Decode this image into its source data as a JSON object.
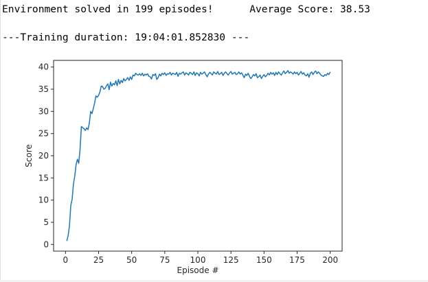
{
  "output": {
    "solved_line": "Environment solved in 199 episodes!      Average Score: 38.53",
    "duration_line": "---Training duration: 19:04:01.852830 ---"
  },
  "colors": {
    "line": "#1f77b4",
    "axis": "#262626",
    "text": "#000000"
  },
  "chart_data": {
    "type": "line",
    "title": "",
    "xlabel": "Episode #",
    "ylabel": "Score",
    "xlim": [
      -9,
      209
    ],
    "ylim": [
      -1.5,
      41.5
    ],
    "xticks": [
      0,
      25,
      50,
      75,
      100,
      125,
      150,
      175,
      200
    ],
    "yticks": [
      0,
      5,
      10,
      15,
      20,
      25,
      30,
      35,
      40
    ],
    "grid": false,
    "legend": "none",
    "series": [
      {
        "name": "",
        "x": [
          1,
          2,
          3,
          4,
          5,
          6,
          7,
          8,
          9,
          10,
          11,
          12,
          13,
          14,
          15,
          16,
          17,
          18,
          19,
          20,
          21,
          22,
          23,
          24,
          25,
          26,
          27,
          28,
          29,
          30,
          31,
          32,
          33,
          34,
          35,
          36,
          37,
          38,
          39,
          40,
          41,
          42,
          43,
          44,
          45,
          46,
          47,
          48,
          49,
          50,
          51,
          52,
          53,
          54,
          55,
          56,
          57,
          58,
          59,
          60,
          61,
          62,
          63,
          64,
          65,
          66,
          67,
          68,
          69,
          70,
          71,
          72,
          73,
          74,
          75,
          76,
          77,
          78,
          79,
          80,
          81,
          82,
          83,
          84,
          85,
          86,
          87,
          88,
          89,
          90,
          91,
          92,
          93,
          94,
          95,
          96,
          97,
          98,
          99,
          100,
          101,
          102,
          103,
          104,
          105,
          106,
          107,
          108,
          109,
          110,
          111,
          112,
          113,
          114,
          115,
          116,
          117,
          118,
          119,
          120,
          121,
          122,
          123,
          124,
          125,
          126,
          127,
          128,
          129,
          130,
          131,
          132,
          133,
          134,
          135,
          136,
          137,
          138,
          139,
          140,
          141,
          142,
          143,
          144,
          145,
          146,
          147,
          148,
          149,
          150,
          151,
          152,
          153,
          154,
          155,
          156,
          157,
          158,
          159,
          160,
          161,
          162,
          163,
          164,
          165,
          166,
          167,
          168,
          169,
          170,
          171,
          172,
          173,
          174,
          175,
          176,
          177,
          178,
          179,
          180,
          181,
          182,
          183,
          184,
          185,
          186,
          187,
          188,
          189,
          190,
          191,
          192,
          193,
          194,
          195,
          196,
          197,
          198,
          199,
          200
        ],
        "values": [
          0.8,
          2.0,
          4.2,
          8.8,
          10.2,
          13.6,
          15.4,
          18.0,
          19.2,
          18.3,
          21.5,
          26.6,
          26.3,
          26.1,
          25.7,
          26.3,
          25.9,
          27.3,
          30.0,
          29.5,
          30.6,
          31.9,
          33.5,
          33.2,
          33.6,
          34.4,
          35.7,
          35.6,
          35.0,
          35.2,
          35.8,
          36.2,
          34.9,
          36.6,
          35.7,
          36.3,
          36.0,
          36.9,
          35.8,
          37.2,
          36.2,
          37.0,
          36.5,
          37.4,
          36.9,
          37.2,
          37.6,
          37.0,
          37.8,
          37.2,
          38.2,
          38.0,
          38.6,
          38.3,
          38.2,
          38.5,
          38.1,
          38.6,
          38.0,
          38.4,
          38.2,
          38.5,
          37.9,
          37.8,
          37.3,
          38.3,
          38.1,
          38.5,
          37.2,
          37.6,
          38.4,
          38.0,
          38.6,
          38.3,
          38.7,
          38.1,
          38.5,
          38.4,
          38.8,
          38.2,
          38.6,
          38.5,
          38.3,
          38.8,
          37.9,
          38.6,
          38.4,
          38.7,
          38.9,
          38.2,
          38.7,
          38.5,
          38.2,
          38.8,
          38.6,
          38.3,
          38.9,
          38.1,
          38.7,
          38.5,
          38.0,
          38.8,
          38.4,
          38.6,
          38.9,
          38.3,
          37.8,
          38.4,
          38.8,
          38.5,
          38.2,
          38.9,
          38.6,
          38.4,
          39.0,
          38.3,
          38.5,
          38.8,
          38.1,
          38.6,
          38.9,
          38.5,
          38.2,
          38.7,
          39.0,
          38.4,
          38.6,
          38.8,
          38.3,
          38.5,
          38.9,
          38.4,
          38.7,
          38.2,
          37.6,
          38.4,
          38.1,
          38.6,
          37.9,
          37.4,
          37.8,
          38.3,
          38.0,
          38.5,
          37.6,
          37.8,
          38.2,
          37.4,
          37.9,
          38.3,
          37.8,
          38.1,
          38.6,
          38.2,
          38.8,
          38.4,
          38.7,
          38.1,
          38.8,
          38.3,
          38.9,
          38.5,
          38.2,
          38.7,
          39.1,
          38.5,
          38.8,
          39.2,
          38.6,
          38.9,
          38.7,
          38.4,
          38.9,
          38.5,
          38.8,
          38.2,
          38.6,
          39.0,
          38.4,
          38.7,
          38.2,
          38.0,
          38.5,
          37.7,
          38.6,
          38.9,
          38.3,
          38.8,
          39.1,
          38.5,
          38.9,
          38.6,
          38.2,
          38.0,
          37.9,
          38.3,
          38.1,
          38.6,
          38.3,
          38.9
        ]
      }
    ]
  }
}
